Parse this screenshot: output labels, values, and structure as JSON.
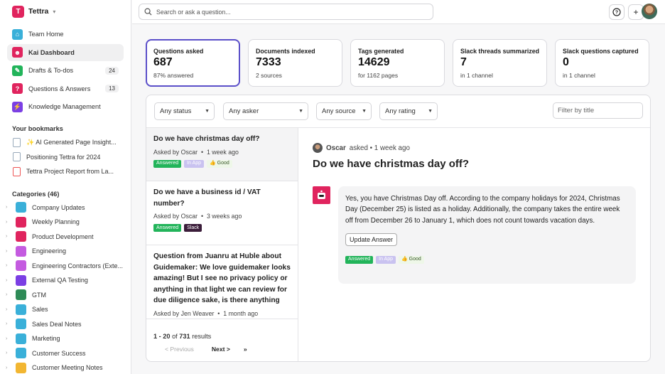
{
  "brand": {
    "name": "Tettra"
  },
  "nav": [
    {
      "label": "Team Home",
      "icon": "house-icon",
      "color": "#3ab0d9",
      "count": ""
    },
    {
      "label": "Kai Dashboard",
      "icon": "robot-icon",
      "color": "#e0245e",
      "count": ""
    },
    {
      "label": "Drafts & To-dos",
      "icon": "pencil-icon",
      "color": "#22b45a",
      "count": "24"
    },
    {
      "label": "Questions & Answers",
      "icon": "question-icon",
      "color": "#e0245e",
      "count": "13"
    },
    {
      "label": "Knowledge Management",
      "icon": "bolt-icon",
      "color": "#7b3fe4",
      "count": ""
    }
  ],
  "bookmarks": {
    "title": "Your bookmarks",
    "items": [
      {
        "label": "✨ AI Generated Page Insight...",
        "type": "doc"
      },
      {
        "label": "Positioning Tettra for 2024",
        "type": "doc"
      },
      {
        "label": "Tettra Project Report from La...",
        "type": "pdf"
      }
    ]
  },
  "categories": {
    "title": "Categories (46)",
    "items": [
      {
        "label": "Company Updates",
        "color": "#3ab0d9"
      },
      {
        "label": "Weekly Planning",
        "color": "#e0245e"
      },
      {
        "label": "Product Development",
        "color": "#e0245e"
      },
      {
        "label": "Engineering",
        "color": "#c45be0"
      },
      {
        "label": "Engineering Contractors (Exte...",
        "color": "#c45be0"
      },
      {
        "label": "External QA Testing",
        "color": "#7b3fe4"
      },
      {
        "label": "GTM",
        "color": "#2e8b57"
      },
      {
        "label": "Sales",
        "color": "#3ab0d9"
      },
      {
        "label": "Sales Deal Notes",
        "color": "#3ab0d9"
      },
      {
        "label": "Marketing",
        "color": "#3ab0d9"
      },
      {
        "label": "Customer Success",
        "color": "#3ab0d9"
      },
      {
        "label": "Customer Meeting Notes",
        "color": "#f2b632"
      }
    ]
  },
  "search": {
    "placeholder": "Search or ask a question..."
  },
  "stats": [
    {
      "label": "Questions asked",
      "value": "687",
      "sub": "87% answered"
    },
    {
      "label": "Documents indexed",
      "value": "7333",
      "sub": "2 sources"
    },
    {
      "label": "Tags generated",
      "value": "14629",
      "sub": "for 1162 pages"
    },
    {
      "label": "Slack threads summarized",
      "value": "7",
      "sub": "in 1 channel"
    },
    {
      "label": "Slack questions captured",
      "value": "0",
      "sub": "in 1 channel"
    }
  ],
  "filters": {
    "status": "Any status",
    "asker": "Any asker",
    "source": "Any source",
    "rating": "Any rating",
    "title_placeholder": "Filter by title"
  },
  "questions": [
    {
      "title": "Do we have christmas day off?",
      "asker": "Asked by Oscar",
      "time": "1 week ago",
      "tags": [
        "Answered",
        "In App",
        "👍 Good"
      ]
    },
    {
      "title": "Do we have a business id / VAT number?",
      "asker": "Asked by Oscar",
      "time": "3 weeks ago",
      "tags": [
        "Answered",
        "Slack"
      ]
    },
    {
      "title": "Question from Juanru at Huble about Guidemaker: We love guidemaker looks amazing! But I see no privacy policy or anything in that light we can review for due diligence sake, is there anything",
      "asker": "Asked by Jen Weaver",
      "time": "1 month ago",
      "tags": []
    }
  ],
  "pagination": {
    "range": "1 - 20",
    "of": "of",
    "total": "731",
    "suffix": "results",
    "prev": "< Previous",
    "next": "Next >",
    "last": "»"
  },
  "detail": {
    "asker": "Oscar",
    "asked": "asked • 1 week ago",
    "title": "Do we have christmas day off?",
    "answer": "Yes, you have Christmas Day off. According to the company holidays for 2024, Christmas Day (December 25) is listed as a holiday. Additionally, the company takes the entire week off from December 26 to January 1, which does not count towards vacation days.",
    "update_button": "Update Answer",
    "tags": [
      "Answered",
      "In App",
      "👍 Good"
    ]
  }
}
